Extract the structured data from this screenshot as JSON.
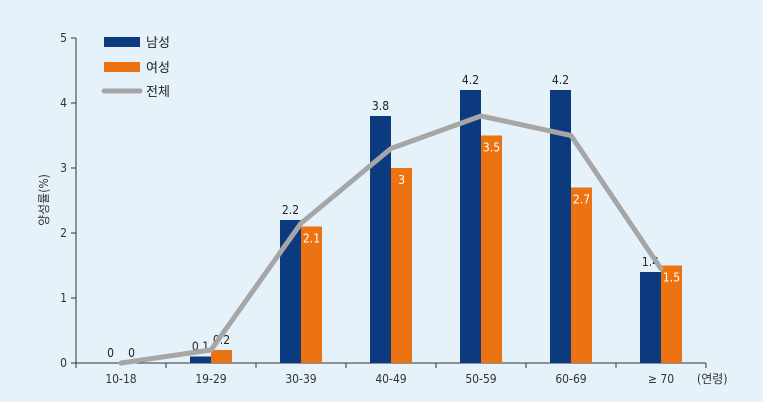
{
  "chart_data": {
    "type": "bar",
    "title": "",
    "ylabel": "양성률(%)",
    "xlabel": "(연령)",
    "categories": [
      "10-18",
      "19-29",
      "30-39",
      "40-49",
      "50-59",
      "60-69",
      "≥ 70"
    ],
    "ylim": [
      0,
      5
    ],
    "yticks": [
      0,
      1,
      2,
      3,
      4,
      5
    ],
    "series": [
      {
        "name": "남성",
        "kind": "bar",
        "color": "#0b3a7e",
        "values": [
          0,
          0.1,
          2.2,
          3.8,
          4.2,
          4.2,
          1.4
        ],
        "labels": [
          "0",
          "0.1",
          "2.2",
          "3.8",
          "4.2",
          "4.2",
          "1.4"
        ]
      },
      {
        "name": "여성",
        "kind": "bar",
        "color": "#ec7311",
        "values": [
          0,
          0.2,
          2.1,
          3,
          3.5,
          2.7,
          1.5
        ],
        "labels": [
          "0",
          "0.2",
          "2.1",
          "3",
          "3.5",
          "2.7",
          "1.5"
        ]
      },
      {
        "name": "전체",
        "kind": "line",
        "color": "#a6a6a6",
        "values": [
          0,
          0.2,
          2.15,
          3.3,
          3.8,
          3.5,
          1.45
        ]
      }
    ],
    "legend_position": "top-left",
    "grid": false
  }
}
